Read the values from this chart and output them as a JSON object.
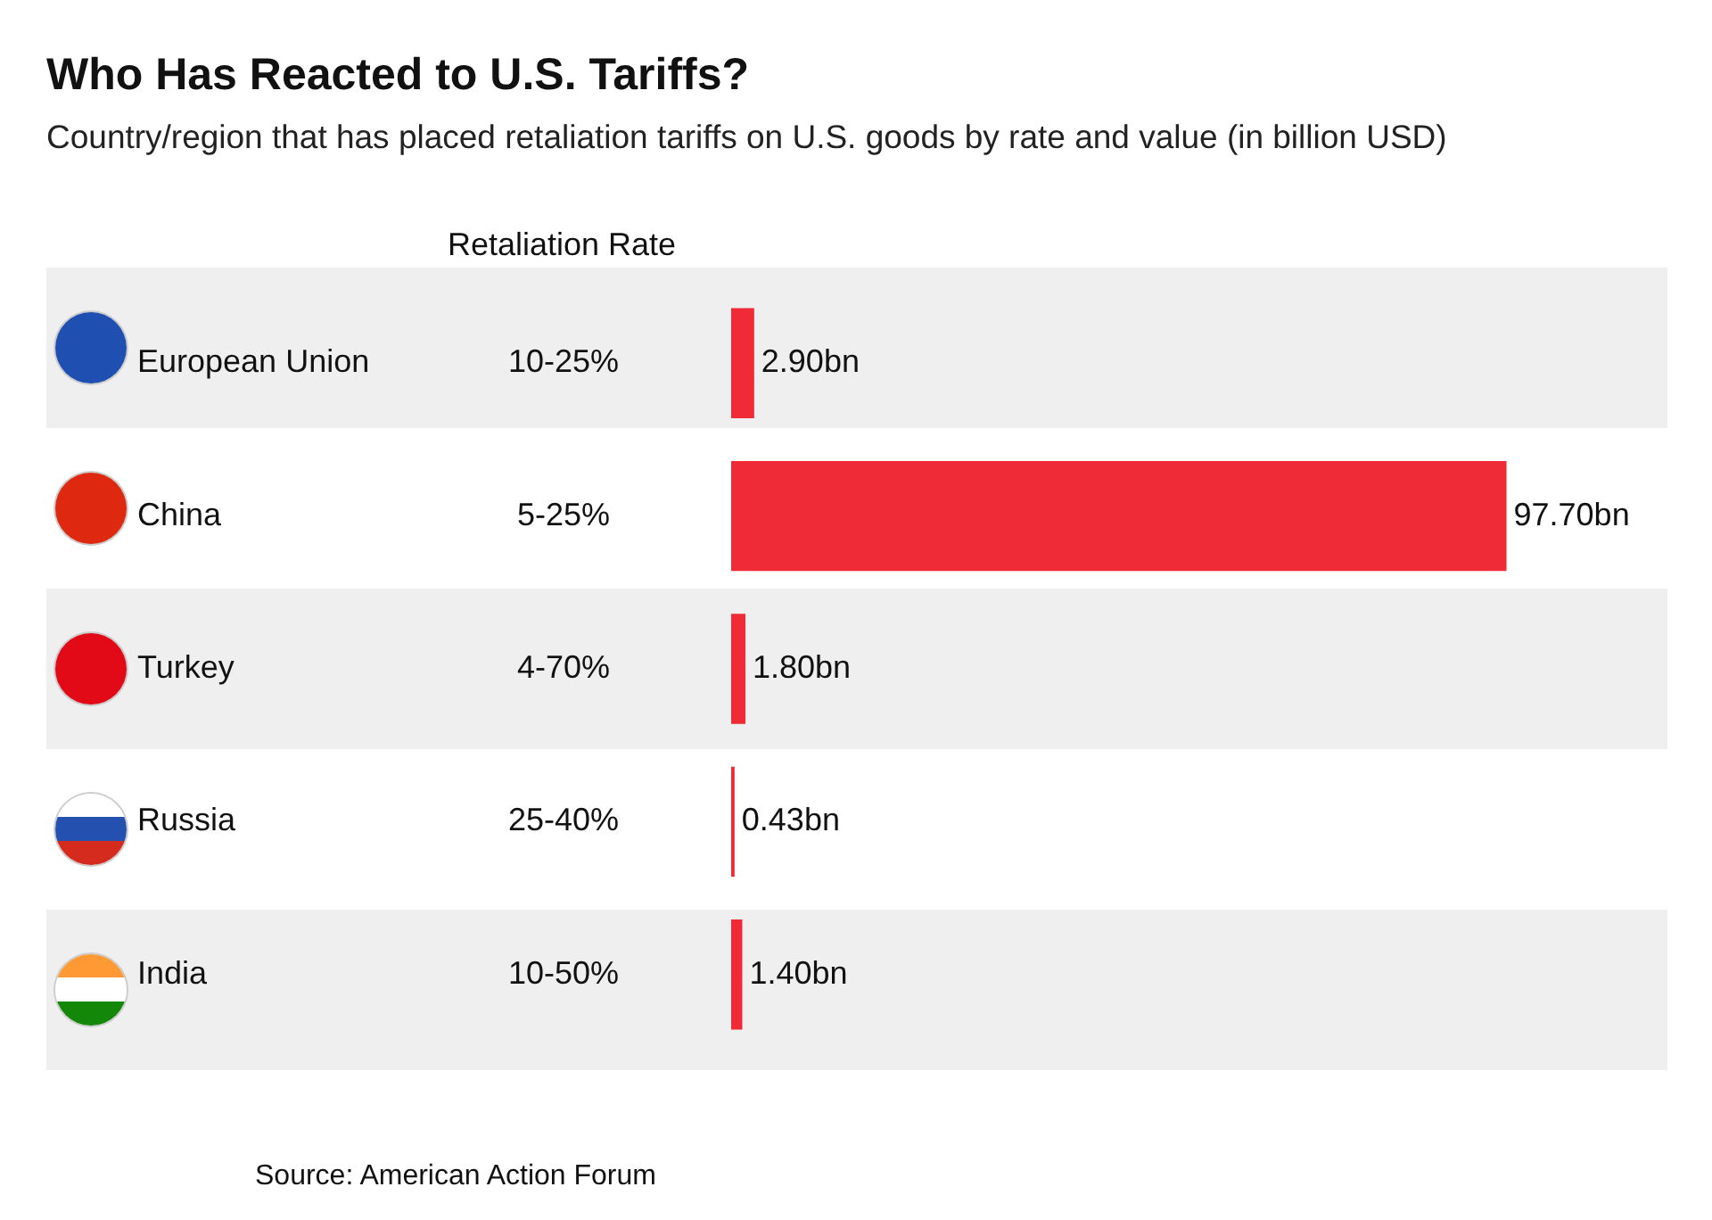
{
  "chart_data": {
    "type": "bar",
    "orientation": "horizontal",
    "title": "Who Has Reacted to U.S. Tariffs?",
    "subtitle": "Country/region that has placed retaliation tariffs on U.S. goods by rate and value (in billion USD)",
    "categories": [
      "European Union",
      "China",
      "Turkey",
      "Russia",
      "India"
    ],
    "values": [
      2.9,
      97.7,
      1.8,
      0.43,
      1.4
    ],
    "value_labels": [
      "2.90bn",
      "97.70bn",
      "1.80bn",
      "0.43bn",
      "1.40bn"
    ],
    "color": "#ee2b36",
    "grid": false,
    "legend": false,
    "annotations": [
      "Retaliation Rate",
      "10-25%",
      "5-25%",
      "4-70%",
      "25-40%",
      "10-50%",
      "Source: American Action Forum"
    ]
  }
}
